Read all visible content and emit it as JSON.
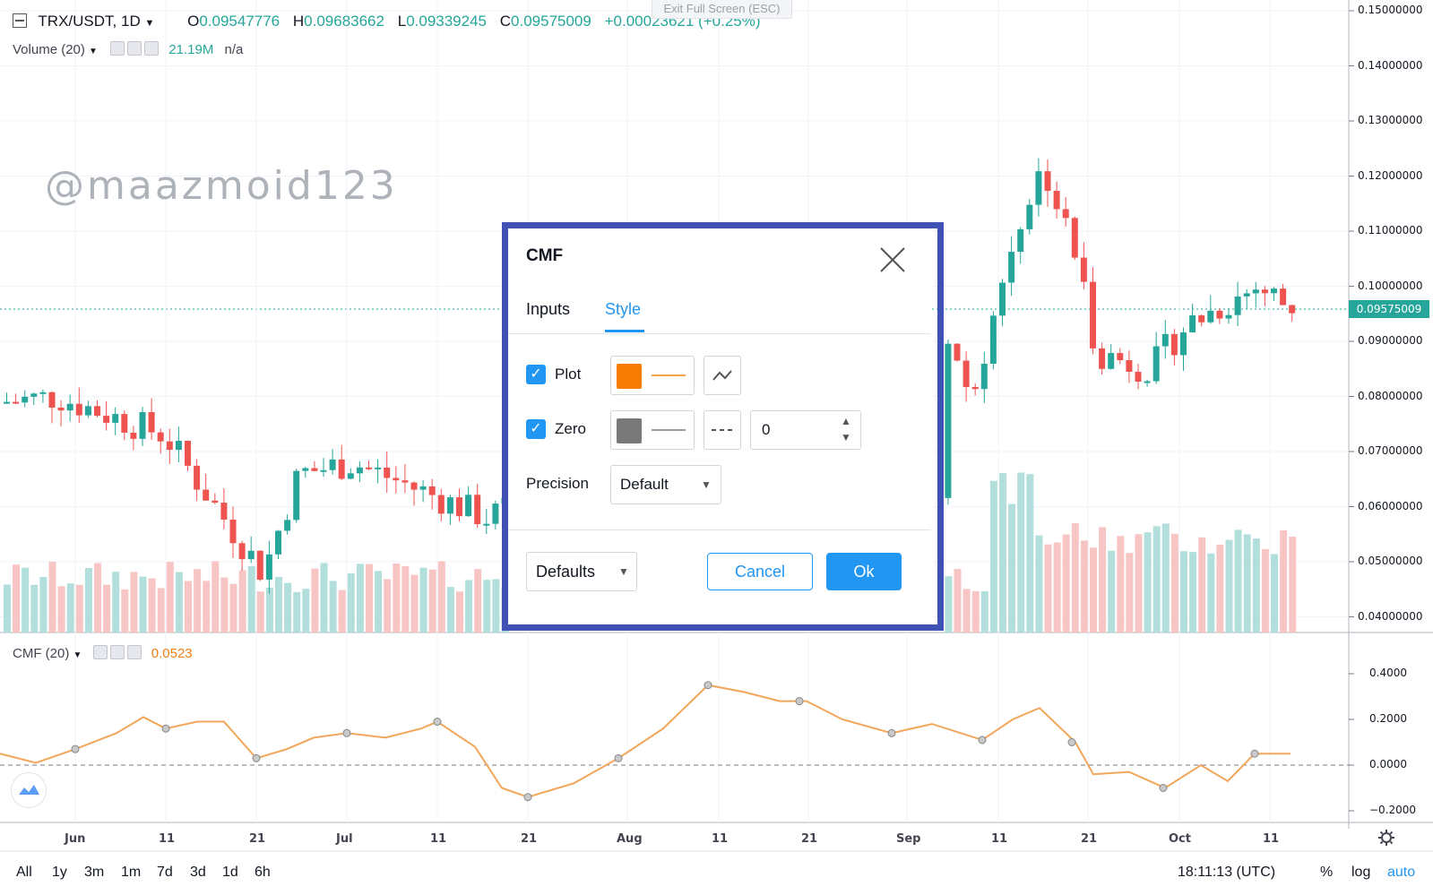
{
  "header": {
    "symbol": "TRX/USDT, 1D",
    "open_label": "O",
    "open": "0.09547776",
    "high_label": "H",
    "high": "0.09683662",
    "low_label": "L",
    "low": "0.09339245",
    "close_label": "C",
    "close": "0.09575009",
    "change": "+0.00023621 (+0.25%)",
    "exit_fullscreen": "Exit Full Screen (ESC)"
  },
  "volume": {
    "label": "Volume (20)",
    "value": "21.19M",
    "na": "n/a"
  },
  "watermark": "@maazmoid123",
  "price_axis": {
    "labels": [
      "0.15000000",
      "0.14000000",
      "0.13000000",
      "0.12000000",
      "0.11000000",
      "0.10000000",
      "0.09000000",
      "0.08000000",
      "0.07000000",
      "0.06000000",
      "0.05000000",
      "0.04000000"
    ],
    "last_price": "0.09575009"
  },
  "cmf": {
    "label": "CMF (20)",
    "value": "0.0523",
    "axis_labels": [
      "0.4000",
      "0.2000",
      "0.0000",
      "−0.2000"
    ]
  },
  "time_axis": [
    "Jun",
    "11",
    "21",
    "Jul",
    "11",
    "21",
    "Aug",
    "11",
    "21",
    "Sep",
    "11",
    "21",
    "Oct",
    "11"
  ],
  "bottom_bar": {
    "ranges": [
      "All",
      "1y",
      "3m",
      "1m",
      "7d",
      "3d",
      "1d",
      "6h"
    ],
    "clock": "18:11:13 (UTC)",
    "percent": "%",
    "log": "log",
    "auto": "auto"
  },
  "dialog": {
    "title": "CMF",
    "tabs": [
      "Inputs",
      "Style"
    ],
    "active_tab": "Style",
    "plot_label": "Plot",
    "zero_label": "Zero",
    "zero_value": "0",
    "precision_label": "Precision",
    "precision_value": "Default",
    "defaults_label": "Defaults",
    "cancel_label": "Cancel",
    "ok_label": "Ok",
    "plot_color": "#f57c00",
    "zero_color": "#787878"
  },
  "colors": {
    "up": "#26a69a",
    "down": "#ef5350",
    "cmf_line": "#f2a65a",
    "accent": "#2196f3"
  }
}
